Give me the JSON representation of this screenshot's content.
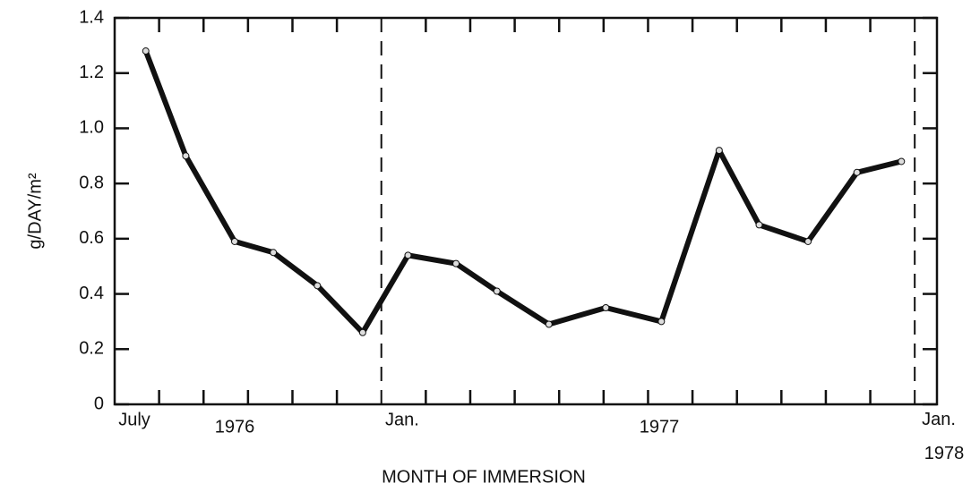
{
  "chart_data": {
    "type": "line",
    "y_label": "g/DAY/m²",
    "x_label": "MONTH OF IMMERSION",
    "x_labels": [
      "July",
      "1976",
      "Jan.",
      "1977",
      "Jan. 1978"
    ],
    "x": [
      0.7,
      1.6,
      2.7,
      3.57,
      4.56,
      5.58,
      6.6,
      7.68,
      8.6,
      9.77,
      11.05,
      12.3,
      13.6,
      14.5,
      15.6,
      16.7,
      17.7
    ],
    "series": [
      {
        "color": "#111111",
        "values": [
          1.28,
          0.9,
          0.59,
          0.55,
          0.43,
          0.26,
          0.54,
          0.51,
          0.41,
          0.29,
          0.35,
          0.3,
          0.92,
          0.65,
          0.59,
          0.84,
          0.88
        ]
      }
    ],
    "xlim": [
      0,
      18.5
    ],
    "xticks": [
      1,
      2,
      3,
      4,
      5,
      7,
      8,
      9,
      10,
      11,
      12,
      13,
      14,
      15,
      16,
      17
    ],
    "year_lines": [
      6,
      18
    ],
    "ylim": [
      0,
      1.4
    ],
    "yticks": [
      0,
      0.2,
      0.4,
      0.6,
      0.8,
      {
        "value": 1.0,
        "label": "1.0"
      },
      1.2,
      1.4
    ]
  }
}
